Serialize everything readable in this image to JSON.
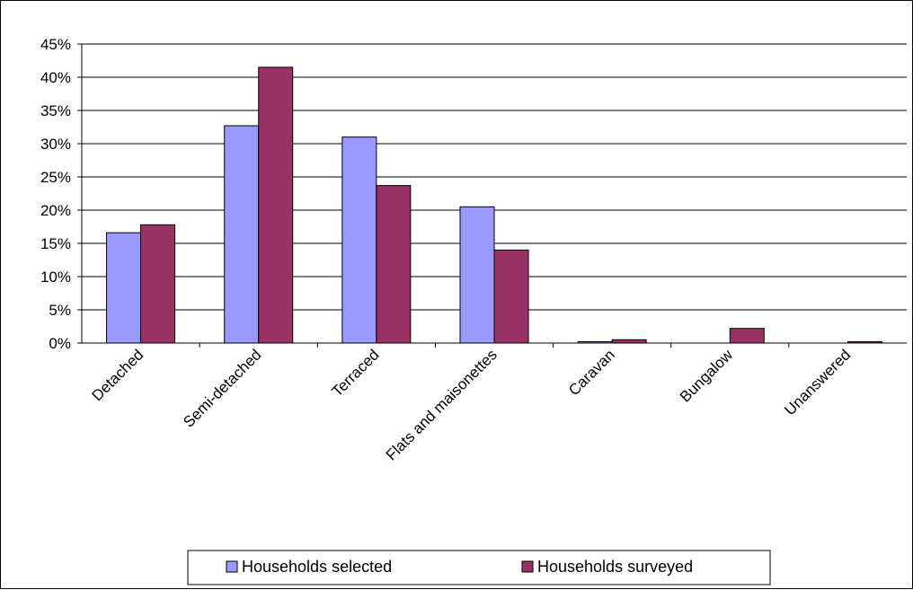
{
  "chart_data": {
    "type": "bar",
    "categories": [
      "Detached",
      "Semi-detached",
      "Terraced",
      "Flats and maisonettes",
      "Caravan",
      "Bungalow",
      "Unanswered"
    ],
    "series": [
      {
        "name": "Households selected",
        "color": "#9999ff",
        "values": [
          16.6,
          32.7,
          31.0,
          20.5,
          0.2,
          0.0,
          0.0
        ]
      },
      {
        "name": "Households surveyed",
        "color": "#993366",
        "values": [
          17.8,
          41.5,
          23.7,
          14.0,
          0.5,
          2.2,
          0.2
        ]
      }
    ],
    "y_ticks": [
      "0%",
      "5%",
      "10%",
      "15%",
      "20%",
      "25%",
      "30%",
      "35%",
      "40%",
      "45%"
    ],
    "ylim": [
      0,
      45
    ],
    "y_step": 5,
    "grid": true,
    "legend_position": "bottom"
  }
}
